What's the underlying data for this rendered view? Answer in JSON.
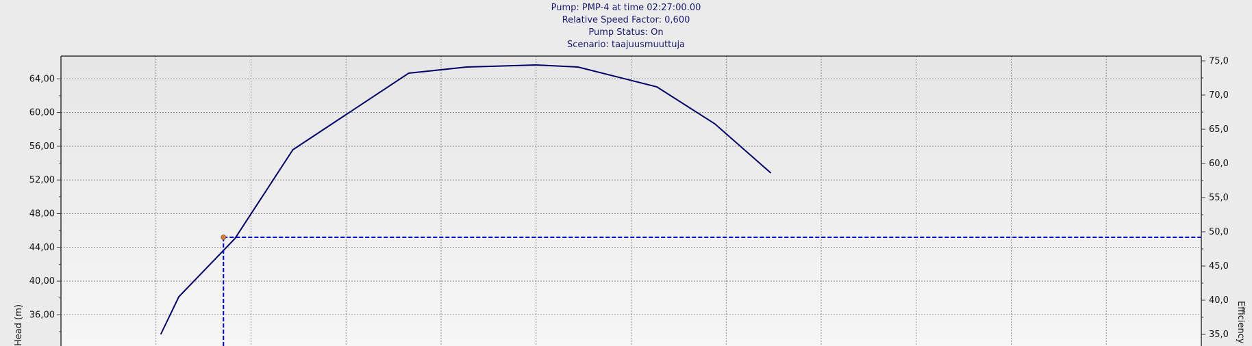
{
  "header": {
    "line1": "Pump:  PMP-4 at time 02:27:00.00",
    "line2": "Relative Speed Factor:  0,600",
    "line3": "Pump Status:  On",
    "line4": "Scenario:  taajuusmuuttuja"
  },
  "chart_data": {
    "type": "line",
    "left_axis": {
      "label": "Head (m)",
      "ticks": [
        "64,00",
        "60,00",
        "56,00",
        "52,00",
        "48,00",
        "44,00",
        "40,00",
        "36,00"
      ],
      "tick_values": [
        64,
        60,
        56,
        52,
        48,
        44,
        40,
        36
      ],
      "range": [
        32.3,
        66.7
      ]
    },
    "right_axis": {
      "label": "Efficiency",
      "ticks": [
        "75,0",
        "70,0",
        "65,0",
        "60,0",
        "55,0",
        "50,0",
        "45,0",
        "40,0",
        "35,0"
      ],
      "tick_values": [
        75,
        70,
        65,
        60,
        55,
        50,
        45,
        40,
        35
      ],
      "range": [
        33.3,
        75.7
      ]
    },
    "x_axis": {
      "range": [
        0,
        12
      ],
      "gridlines": 12
    },
    "grid": true,
    "series": [
      {
        "color": "#000066",
        "style": "solid",
        "axis": "right",
        "points": [
          [
            1.05,
            35.0
          ],
          [
            1.24,
            40.5
          ],
          [
            1.83,
            49.0
          ],
          [
            2.44,
            62.0
          ],
          [
            3.66,
            73.2
          ],
          [
            4.27,
            74.1
          ],
          [
            5.0,
            74.4
          ],
          [
            5.44,
            74.1
          ],
          [
            6.27,
            71.2
          ],
          [
            6.88,
            65.8
          ],
          [
            7.47,
            58.6
          ]
        ]
      }
    ],
    "operating_point": {
      "x": 1.71,
      "head": 45.2,
      "color": "#0000cc",
      "marker_color": "#d08040"
    }
  }
}
